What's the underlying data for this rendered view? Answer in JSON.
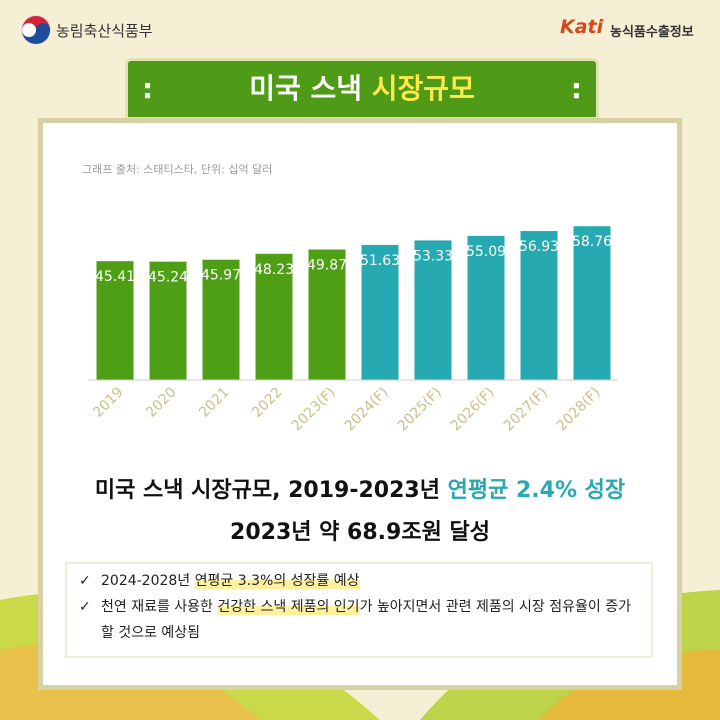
{
  "header": {
    "ministry": "농림축산식품부",
    "logo": "Kati",
    "brand": "농식품수출정보"
  },
  "title": {
    "main": "미국 스낵",
    "highlight": "시장규모"
  },
  "chart_data": {
    "type": "bar",
    "source": "그래프 출처: 스태티스타, 단위: 십억 달러",
    "categories": [
      "2019",
      "2020",
      "2021",
      "2022",
      "2023(F)",
      "2024(F)",
      "2025(F)",
      "2026(F)",
      "2027(F)",
      "2028(F)"
    ],
    "values": [
      45.41,
      45.24,
      45.97,
      48.23,
      49.87,
      51.63,
      53.33,
      55.09,
      56.93,
      58.76
    ],
    "colors": [
      "#4f9f16",
      "#4f9f16",
      "#4f9f16",
      "#4f9f16",
      "#4f9f16",
      "#27a9b1",
      "#27a9b1",
      "#27a9b1",
      "#27a9b1",
      "#27a9b1"
    ],
    "ylim": [
      0,
      60
    ]
  },
  "headline": {
    "line1": "미국 스낵 시장규모, 2019-2023년",
    "line1_highlight": "연평균 2.4% 성장",
    "line2": "2023년 약 68.9조원 달성"
  },
  "bullets": [
    {
      "before": "2024-2028년",
      "highlight": "연평균 3.3%의 성장률 예상",
      "after": ""
    },
    {
      "before": "천연 재료를 사용한",
      "highlight": "건강한 스낵 제품의 인기",
      "after": "가 높아지면서 관련 제품의 시장 점유율이 증가할 것으로 예상됨"
    }
  ]
}
